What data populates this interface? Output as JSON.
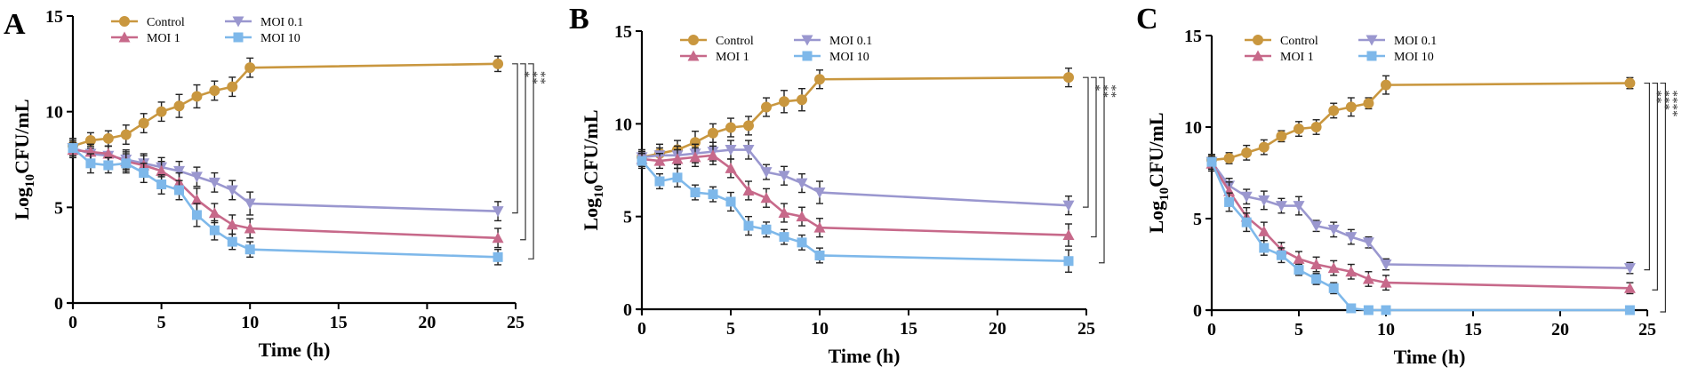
{
  "colors": {
    "Control": "#C9973F",
    "MOI 1": "#C7698A",
    "MOI 0.1": "#9A97CF",
    "MOI 10": "#7EB8EA"
  },
  "chart_data": [
    {
      "panel": "A",
      "type": "line",
      "xlabel": "Time (h)",
      "ylabel": "Log10CFU/mL",
      "xlim": [
        0,
        25
      ],
      "ylim": [
        0,
        15
      ],
      "xticks": [
        0,
        5,
        10,
        15,
        20,
        25
      ],
      "yticks": [
        0,
        5,
        10,
        15
      ],
      "x": [
        0,
        1,
        2,
        3,
        4,
        5,
        6,
        7,
        8,
        9,
        10,
        24
      ],
      "series": [
        {
          "name": "Control",
          "marker": "circle",
          "values": [
            8.2,
            8.5,
            8.6,
            8.8,
            9.4,
            10.0,
            10.3,
            10.8,
            11.1,
            11.3,
            12.3,
            12.5
          ],
          "errors": [
            0.4,
            0.4,
            0.4,
            0.5,
            0.5,
            0.5,
            0.6,
            0.6,
            0.5,
            0.5,
            0.5,
            0.4
          ]
        },
        {
          "name": "MOI 0.1",
          "marker": "triangle-down",
          "values": [
            8.1,
            7.8,
            7.7,
            7.5,
            7.3,
            7.1,
            6.9,
            6.6,
            6.3,
            5.9,
            5.2,
            4.8
          ],
          "errors": [
            0.4,
            0.4,
            0.5,
            0.5,
            0.5,
            0.5,
            0.5,
            0.5,
            0.5,
            0.5,
            0.6,
            0.5
          ]
        },
        {
          "name": "MOI 1",
          "marker": "triangle-up",
          "values": [
            8.0,
            7.9,
            7.8,
            7.4,
            7.2,
            6.9,
            6.3,
            5.4,
            4.7,
            4.1,
            3.9,
            3.4
          ],
          "errors": [
            0.4,
            0.4,
            0.4,
            0.5,
            0.5,
            0.5,
            0.5,
            0.6,
            0.5,
            0.5,
            0.5,
            0.5
          ]
        },
        {
          "name": "MOI 10",
          "marker": "square",
          "values": [
            8.1,
            7.3,
            7.2,
            7.3,
            6.8,
            6.2,
            5.9,
            4.6,
            3.8,
            3.2,
            2.8,
            2.4
          ],
          "errors": [
            0.5,
            0.5,
            0.4,
            0.5,
            0.5,
            0.5,
            0.5,
            0.6,
            0.5,
            0.4,
            0.4,
            0.4
          ]
        }
      ],
      "significance": [
        "*",
        "**",
        "**"
      ]
    },
    {
      "panel": "B",
      "type": "line",
      "xlabel": "Time (h)",
      "ylabel": "Log10CFU/mL",
      "xlim": [
        0,
        25
      ],
      "ylim": [
        0,
        15
      ],
      "xticks": [
        0,
        5,
        10,
        15,
        20,
        25
      ],
      "yticks": [
        0,
        5,
        10,
        15
      ],
      "x": [
        0,
        1,
        2,
        3,
        4,
        5,
        6,
        7,
        8,
        9,
        10,
        24
      ],
      "series": [
        {
          "name": "Control",
          "marker": "circle",
          "values": [
            8.2,
            8.4,
            8.6,
            9.0,
            9.5,
            9.8,
            9.9,
            10.9,
            11.2,
            11.3,
            12.4,
            12.5
          ],
          "errors": [
            0.4,
            0.5,
            0.5,
            0.6,
            0.5,
            0.5,
            0.5,
            0.5,
            0.6,
            0.6,
            0.5,
            0.5
          ]
        },
        {
          "name": "MOI 0.1",
          "marker": "triangle-down",
          "values": [
            8.2,
            8.3,
            8.3,
            8.4,
            8.5,
            8.6,
            8.6,
            7.4,
            7.2,
            6.8,
            6.3,
            5.6
          ],
          "errors": [
            0.4,
            0.4,
            0.5,
            0.5,
            0.5,
            0.5,
            0.5,
            0.4,
            0.5,
            0.5,
            0.6,
            0.5
          ]
        },
        {
          "name": "MOI 1",
          "marker": "triangle-up",
          "values": [
            8.1,
            8.0,
            8.1,
            8.2,
            8.3,
            7.6,
            6.4,
            6.0,
            5.2,
            5.0,
            4.4,
            4.0
          ],
          "errors": [
            0.4,
            0.4,
            0.5,
            0.5,
            0.5,
            0.5,
            0.5,
            0.5,
            0.5,
            0.5,
            0.5,
            0.6
          ]
        },
        {
          "name": "MOI 10",
          "marker": "square",
          "values": [
            8.0,
            6.9,
            7.1,
            6.3,
            6.2,
            5.8,
            4.5,
            4.3,
            3.9,
            3.6,
            2.9,
            2.6
          ],
          "errors": [
            0.4,
            0.4,
            0.5,
            0.4,
            0.4,
            0.5,
            0.5,
            0.4,
            0.4,
            0.4,
            0.4,
            0.6
          ]
        }
      ],
      "significance": [
        "*",
        "**",
        "**"
      ]
    },
    {
      "panel": "C",
      "type": "line",
      "xlabel": "Time (h)",
      "ylabel": "Log10CFU/mL",
      "xlim": [
        0,
        25
      ],
      "ylim": [
        0,
        15
      ],
      "xticks": [
        0,
        5,
        10,
        15,
        20,
        25
      ],
      "yticks": [
        0,
        5,
        10,
        15
      ],
      "x": [
        0,
        1,
        2,
        3,
        4,
        5,
        6,
        7,
        8,
        9,
        10,
        24
      ],
      "series": [
        {
          "name": "Control",
          "marker": "circle",
          "values": [
            8.2,
            8.3,
            8.6,
            8.9,
            9.5,
            9.9,
            10.0,
            10.9,
            11.1,
            11.3,
            12.3,
            12.4
          ],
          "errors": [
            0.3,
            0.3,
            0.4,
            0.4,
            0.3,
            0.4,
            0.4,
            0.4,
            0.5,
            0.3,
            0.5,
            0.3
          ]
        },
        {
          "name": "MOI 0.1",
          "marker": "triangle-down",
          "values": [
            8.1,
            6.8,
            6.2,
            6.0,
            5.7,
            5.7,
            4.6,
            4.4,
            4.0,
            3.7,
            2.5,
            2.3
          ],
          "errors": [
            0.4,
            0.4,
            0.4,
            0.5,
            0.4,
            0.5,
            0.3,
            0.4,
            0.4,
            0.3,
            0.3,
            0.3
          ]
        },
        {
          "name": "MOI 1",
          "marker": "triangle-up",
          "values": [
            8.0,
            6.5,
            5.1,
            4.3,
            3.3,
            2.8,
            2.5,
            2.3,
            2.1,
            1.7,
            1.5,
            1.2
          ],
          "errors": [
            0.4,
            0.5,
            0.5,
            0.5,
            0.4,
            0.4,
            0.4,
            0.4,
            0.4,
            0.4,
            0.4,
            0.3
          ]
        },
        {
          "name": "MOI 10",
          "marker": "square",
          "values": [
            8.1,
            5.9,
            4.8,
            3.4,
            3.0,
            2.2,
            1.7,
            1.2,
            0.1,
            0.0,
            0.0,
            0.0
          ],
          "errors": [
            0.4,
            0.5,
            0.5,
            0.4,
            0.4,
            0.3,
            0.3,
            0.3,
            0.1,
            0.0,
            0.0,
            0.0
          ]
        }
      ],
      "significance": [
        "**",
        "***",
        "****"
      ]
    }
  ]
}
